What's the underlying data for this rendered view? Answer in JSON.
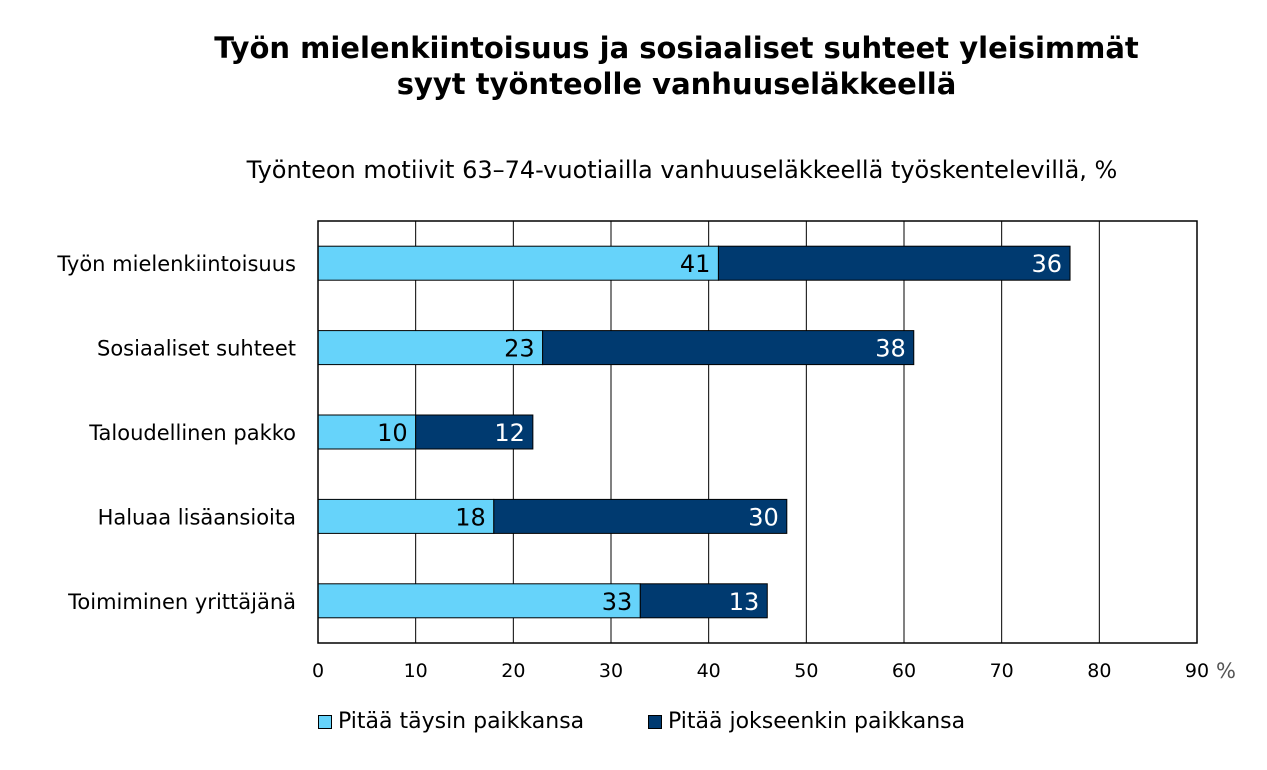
{
  "title_line1": "Työn mielenkiintoisuus ja sosiaaliset suhteet yleisimmät",
  "title_line2": "syyt työnteolle vanhuuseläkkeellä",
  "subtitle": "Työnteon motiivit 63–74-vuotiailla vanhuuseläkkeellä työskentelevillä, %",
  "colors": {
    "light": "#66D3FA",
    "dark": "#003A70"
  },
  "chart_data": {
    "type": "bar",
    "orientation": "horizontal",
    "stacked": true,
    "title": "Työn mielenkiintoisuus ja sosiaaliset suhteet yleisimmät syyt työnteolle vanhuuseläkkeellä",
    "subtitle": "Työnteon motiivit 63–74-vuotiailla vanhuuseläkkeellä työskentelevillä, %",
    "categories": [
      "Työn mielenkiintoisuus",
      "Sosiaaliset suhteet",
      "Taloudellinen pakko",
      "Haluaa lisäansioita",
      "Toimiminen yrittäjänä"
    ],
    "series": [
      {
        "name": "Pitää täysin paikkansa",
        "values": [
          41,
          23,
          10,
          18,
          33
        ]
      },
      {
        "name": "Pitää jokseenkin paikkansa",
        "values": [
          36,
          38,
          12,
          30,
          13
        ]
      }
    ],
    "xlim": [
      0,
      90
    ],
    "xticks": [
      0,
      10,
      20,
      30,
      40,
      50,
      60,
      70,
      80,
      90
    ],
    "xunit": "%",
    "grid": "vertical",
    "legend": "bottom"
  }
}
